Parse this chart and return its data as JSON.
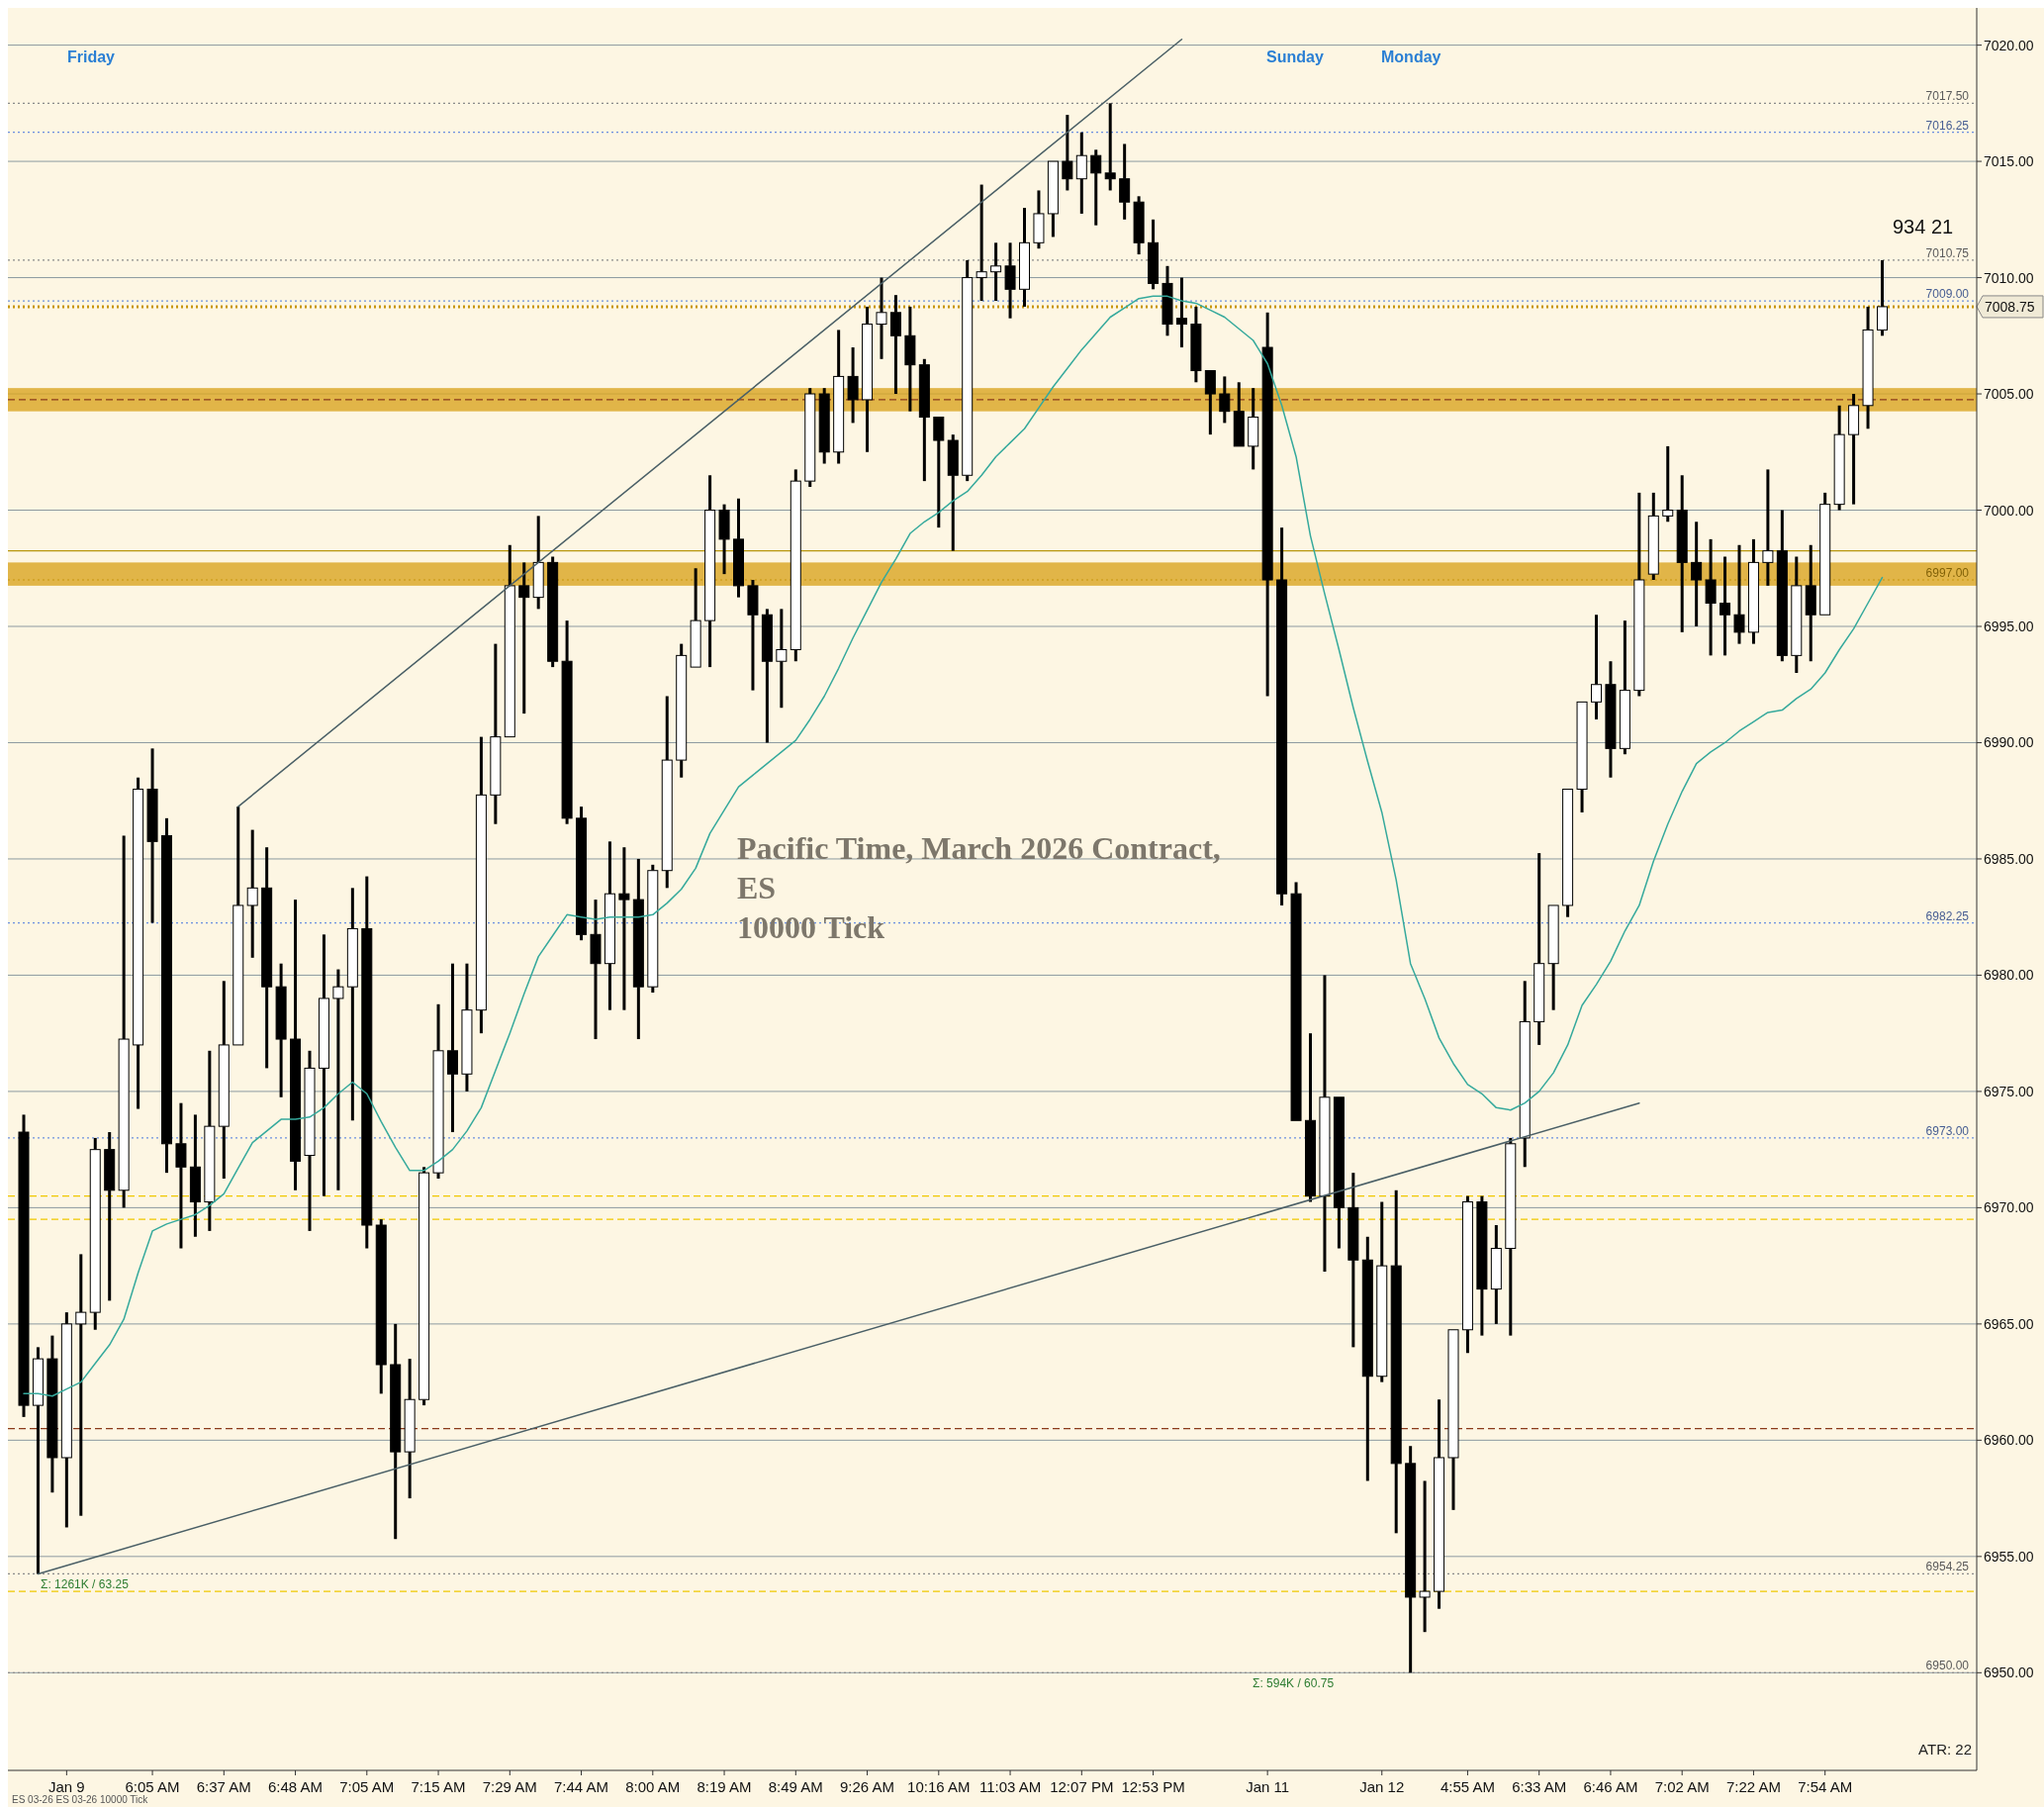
{
  "chart_data": {
    "type": "candlestick",
    "title": "Pacific Time, March 2026 Contract, ES",
    "subtitle": "10000 Tick",
    "categories": [
      null,
      null,
      null,
      "Jan 9",
      null,
      null,
      null,
      null,
      null,
      "6:05 AM",
      null,
      null,
      null,
      null,
      "6:37 AM",
      null,
      null,
      null,
      null,
      "6:48 AM",
      null,
      null,
      null,
      null,
      "7:05 AM",
      null,
      null,
      null,
      null,
      "7:15 AM",
      null,
      null,
      null,
      null,
      "7:29 AM",
      null,
      null,
      null,
      null,
      "7:44 AM",
      null,
      null,
      null,
      null,
      "8:00 AM",
      null,
      null,
      null,
      null,
      "8:19 AM",
      null,
      null,
      null,
      null,
      "8:49 AM",
      null,
      null,
      null,
      null,
      "9:26 AM",
      null,
      null,
      null,
      null,
      "10:16 AM",
      null,
      null,
      null,
      null,
      "11:03 AM",
      null,
      null,
      null,
      null,
      "12:07 PM",
      null,
      null,
      null,
      null,
      "12:53 PM",
      null,
      null,
      null,
      null,
      null,
      null,
      null,
      "Jan 11",
      null,
      null,
      null,
      null,
      null,
      null,
      null,
      "Jan 12",
      null,
      null,
      null,
      null,
      null,
      "4:55 AM",
      null,
      null,
      null,
      null,
      "6:33 AM",
      null,
      null,
      null,
      null,
      "6:46 AM",
      null,
      null,
      null,
      null,
      "7:02 AM",
      null,
      null,
      null,
      null,
      "7:22 AM",
      null,
      null,
      null,
      null,
      "7:54 AM",
      null,
      null,
      null,
      null
    ],
    "ohlc": [
      [
        6973.25,
        6974,
        6961,
        6961.5
      ],
      [
        6961.5,
        6964,
        6954.25,
        6963.5
      ],
      [
        6963.5,
        6964.5,
        6957.75,
        6959.25
      ],
      [
        6959.25,
        6965.5,
        6956.25,
        6965
      ],
      [
        6965,
        6968,
        6956.75,
        6965.5
      ],
      [
        6965.5,
        6973,
        6964.75,
        6972.5
      ],
      [
        6972.5,
        6973.25,
        6966,
        6970.75
      ],
      [
        6970.75,
        6986,
        6970,
        6977.25
      ],
      [
        6977,
        6988.5,
        6974.25,
        6988
      ],
      [
        6988,
        6989.75,
        6982.25,
        6985.75
      ],
      [
        6986,
        6986.75,
        6971.5,
        6972.75
      ],
      [
        6972.75,
        6974.5,
        6968.25,
        6971.75
      ],
      [
        6971.75,
        6974,
        6968.75,
        6970.25
      ],
      [
        6970.25,
        6976.75,
        6969,
        6973.5
      ],
      [
        6973.5,
        6979.75,
        6971.25,
        6977
      ],
      [
        6977,
        6987.25,
        6977,
        6983
      ],
      [
        6983,
        6986.25,
        6980.75,
        6983.75
      ],
      [
        6983.75,
        6985.5,
        6976,
        6979.5
      ],
      [
        6979.5,
        6980.5,
        6974.75,
        6977.25
      ],
      [
        6977.25,
        6983.25,
        6970.75,
        6972
      ],
      [
        6972.25,
        6976.75,
        6969,
        6976
      ],
      [
        6976,
        6981.75,
        6970.5,
        6979
      ],
      [
        6979,
        6980.25,
        6970.75,
        6979.5
      ],
      [
        6979.5,
        6983.75,
        6973.75,
        6982
      ],
      [
        6982,
        6984.25,
        6968.25,
        6969.25
      ],
      [
        6969.25,
        6969.5,
        6962,
        6963.25
      ],
      [
        6963.25,
        6965,
        6955.75,
        6959.5
      ],
      [
        6959.5,
        6963.5,
        6957.5,
        6961.75
      ],
      [
        6961.75,
        6971.75,
        6961.5,
        6971.5
      ],
      [
        6971.5,
        6978.75,
        6971.25,
        6976.75
      ],
      [
        6976.75,
        6980.5,
        6973.25,
        6975.75
      ],
      [
        6975.75,
        6980.5,
        6975,
        6978.5
      ],
      [
        6978.5,
        6990.25,
        6977.5,
        6987.75
      ],
      [
        6987.75,
        6994.25,
        6986.5,
        6990.25
      ],
      [
        6990.25,
        6998.5,
        6990.25,
        6996.75
      ],
      [
        6996.75,
        6997.75,
        6991.25,
        6996.25
      ],
      [
        6996.25,
        6999.75,
        6995.75,
        6997.75
      ],
      [
        6997.75,
        6998,
        6993.25,
        6993.5
      ],
      [
        6993.5,
        6995.25,
        6986.5,
        6986.75
      ],
      [
        6986.75,
        6987.25,
        6981.5,
        6981.75
      ],
      [
        6981.75,
        6983.25,
        6977.25,
        6980.5
      ],
      [
        6980.5,
        6985.75,
        6978.5,
        6983.5
      ],
      [
        6983.5,
        6985.5,
        6978.5,
        6983.25
      ],
      [
        6983.25,
        6985,
        6977.25,
        6979.5
      ],
      [
        6979.5,
        6984.75,
        6979.25,
        6984.5
      ],
      [
        6984.5,
        6992,
        6983.75,
        6989.25
      ],
      [
        6989.25,
        6994.25,
        6988.5,
        6993.75
      ],
      [
        6993.25,
        6997.5,
        6993.25,
        6995.25
      ],
      [
        6995.25,
        7001.5,
        6993.25,
        7000
      ],
      [
        7000,
        7000.25,
        6997.25,
        6998.75
      ],
      [
        6998.75,
        7000.5,
        6996.25,
        6996.75
      ],
      [
        6996.75,
        6997,
        6992.25,
        6995.5
      ],
      [
        6995.5,
        6995.75,
        6990,
        6993.5
      ],
      [
        6993.5,
        6995.75,
        6991.5,
        6994
      ],
      [
        6994,
        7001.75,
        6993.5,
        7001.25
      ],
      [
        7001.25,
        7005.25,
        7001,
        7005
      ],
      [
        7005,
        7005.25,
        7002,
        7002.5
      ],
      [
        7002.5,
        7007.75,
        7002,
        7005.75
      ],
      [
        7005.75,
        7007,
        7003.75,
        7004.75
      ],
      [
        7004.75,
        7008.75,
        7002.5,
        7008
      ],
      [
        7008,
        7010,
        7006.5,
        7008.5
      ],
      [
        7008.5,
        7009.25,
        7005,
        7007.5
      ],
      [
        7007.5,
        7008.75,
        7004.25,
        7006.25
      ],
      [
        7006.25,
        7006.5,
        7001.25,
        7004
      ],
      [
        7004,
        7004,
        6999.25,
        7003
      ],
      [
        7003,
        7003.25,
        6998.25,
        7001.5
      ],
      [
        7001.5,
        7010.75,
        7001.25,
        7010
      ],
      [
        7010,
        7014,
        7009,
        7010.25
      ],
      [
        7010.25,
        7011.5,
        7009,
        7010.5
      ],
      [
        7010.5,
        7011.5,
        7008.25,
        7009.5
      ],
      [
        7009.5,
        7013,
        7008.75,
        7011.5
      ],
      [
        7011.5,
        7013.75,
        7011.25,
        7012.75
      ],
      [
        7012.75,
        7015,
        7011.75,
        7015
      ],
      [
        7015,
        7017,
        7013.75,
        7014.25
      ],
      [
        7014.25,
        7016.25,
        7012.75,
        7015.25
      ],
      [
        7015.25,
        7015.5,
        7012.25,
        7014.5
      ],
      [
        7014.5,
        7017.5,
        7013.75,
        7014.25
      ],
      [
        7014.25,
        7015.75,
        7012.5,
        7013.25
      ],
      [
        7013.25,
        7013.5,
        7011,
        7011.5
      ],
      [
        7011.5,
        7012.5,
        7009.5,
        7009.75
      ],
      [
        7009.75,
        7010.5,
        7007.5,
        7008
      ],
      [
        7008.25,
        7010,
        7007,
        7008
      ],
      [
        7008,
        7008.75,
        7005.5,
        7006
      ],
      [
        7006,
        7006,
        7003.25,
        7005
      ],
      [
        7005,
        7005.75,
        7003.75,
        7004.25
      ],
      [
        7004.25,
        7005.5,
        7002.75,
        7002.75
      ],
      [
        7002.75,
        7005.25,
        7001.75,
        7004
      ],
      [
        7007,
        7008.5,
        6992,
        6997
      ],
      [
        6997,
        6999.25,
        6983,
        6983.5
      ],
      [
        6983.5,
        6984,
        6973.75,
        6973.75
      ],
      [
        6973.75,
        6977.5,
        6970.25,
        6970.5
      ],
      [
        6970.5,
        6980,
        6967.25,
        6974.75
      ],
      [
        6974.75,
        6974.75,
        6968.25,
        6970
      ],
      [
        6970,
        6971.5,
        6964,
        6967.75
      ],
      [
        6967.75,
        6968.75,
        6958.25,
        6962.75
      ],
      [
        6962.75,
        6970.25,
        6962.5,
        6967.5
      ],
      [
        6967.5,
        6970.75,
        6956,
        6959
      ],
      [
        6959,
        6959.75,
        6950,
        6953.25
      ],
      [
        6953.25,
        6958.25,
        6951.75,
        6953.5
      ],
      [
        6953.5,
        6961.75,
        6952.75,
        6959.25
      ],
      [
        6959.25,
        6964.75,
        6957,
        6964.75
      ],
      [
        6964.75,
        6970.5,
        6963.75,
        6970.25
      ],
      [
        6970.25,
        6970.5,
        6964.5,
        6966.5
      ],
      [
        6966.5,
        6969.25,
        6965,
        6968.25
      ],
      [
        6968.25,
        6973,
        6964.5,
        6972.75
      ],
      [
        6973,
        6979.75,
        6971.75,
        6978
      ],
      [
        6978,
        6985.25,
        6977,
        6980.5
      ],
      [
        6980.5,
        6983,
        6978.5,
        6983
      ],
      [
        6983,
        6988,
        6982.5,
        6988
      ],
      [
        6988,
        6991.75,
        6987,
        6991.75
      ],
      [
        6991.75,
        6995.5,
        6991,
        6992.5
      ],
      [
        6992.5,
        6993.5,
        6988.5,
        6989.75
      ],
      [
        6989.75,
        6995.25,
        6989.5,
        6992.25
      ],
      [
        6992.25,
        7000.75,
        6992,
        6997
      ],
      [
        6997.25,
        7000.75,
        6997,
        6999.75
      ],
      [
        6999.75,
        7002.75,
        6999.5,
        7000
      ],
      [
        7000,
        7001.5,
        6994.75,
        6997.75
      ],
      [
        6997.75,
        6999.5,
        6995,
        6997
      ],
      [
        6997,
        6998.75,
        6993.75,
        6996
      ],
      [
        6996,
        6998,
        6993.75,
        6995.5
      ],
      [
        6995.5,
        6998.5,
        6994.25,
        6994.75
      ],
      [
        6994.75,
        6998.75,
        6994.25,
        6997.75
      ],
      [
        6997.75,
        7001.75,
        6996.75,
        6998.25
      ],
      [
        6998.25,
        7000,
        6993.5,
        6993.75
      ],
      [
        6993.75,
        6998,
        6993,
        6996.75
      ],
      [
        6996.75,
        6998.5,
        6993.5,
        6995.5
      ],
      [
        6995.5,
        7000.75,
        6995.5,
        7000.25
      ],
      [
        7000.25,
        7004.5,
        7000,
        7003.25
      ],
      [
        7003.25,
        7005,
        7000.25,
        7004.5
      ],
      [
        7004.5,
        7008.75,
        7003.5,
        7007.75
      ],
      [
        7007.75,
        7010.75,
        7007.5,
        7008.75
      ]
    ],
    "series": [
      {
        "type": "line",
        "color": "#35a99c",
        "values": [
          6962,
          6962,
          6961.9,
          6962.2,
          6962.5,
          6963.3,
          6964.1,
          6965.2,
          6967.2,
          6969,
          6969.3,
          6969.5,
          6969.7,
          6970.1,
          6970.6,
          6971.7,
          6972.8,
          6973.3,
          6973.8,
          6973.8,
          6973.9,
          6974.3,
          6974.9,
          6975.4,
          6974.9,
          6973.7,
          6972.6,
          6971.6,
          6971.6,
          6972,
          6972.5,
          6973.3,
          6974.3,
          6975.9,
          6977.5,
          6979.2,
          6980.8,
          6981.7,
          6982.6,
          6982.5,
          6982.4,
          6982.5,
          6982.5,
          6982.5,
          6982.6,
          6983.1,
          6983.7,
          6984.6,
          6986.1,
          6987.1,
          6988.1,
          6988.6,
          6989.1,
          6989.6,
          6990.1,
          6991,
          6992,
          6993.2,
          6994.5,
          6995.7,
          6996.9,
          6997.9,
          6999,
          6999.5,
          6999.9,
          7000.4,
          7000.8,
          7001.5,
          7002.3,
          7002.9,
          7003.5,
          7004.4,
          7005.3,
          7006.1,
          7006.9,
          7007.6,
          7008.3,
          7008.7,
          7009.1,
          7009.2,
          7009.2,
          7009,
          7008.9,
          7008.6,
          7008.3,
          7007.8,
          7007.3,
          7006.3,
          7004.5,
          7002.3,
          6998.9,
          6996.4,
          6994,
          6991.5,
          6989.2,
          6987,
          6984.1,
          6980.5,
          6979,
          6977.3,
          6976.2,
          6975.3,
          6974.9,
          6974.3,
          6974.2,
          6974.5,
          6975,
          6975.8,
          6977,
          6978.7,
          6979.6,
          6980.6,
          6981.9,
          6983,
          6984.9,
          6986.5,
          6987.9,
          6989.1,
          6989.6,
          6990,
          6990.5,
          6990.9,
          6991.3,
          6991.4,
          6991.9,
          6992.3,
          6993,
          6994,
          6994.9,
          6996,
          6997.1
        ]
      },
      {
        "type": "line",
        "color": "#4a5f66",
        "values": [
          null,
          null,
          null,
          null,
          null,
          null,
          null,
          null,
          null,
          null,
          null,
          null,
          null,
          null,
          null,
          6987.25,
          null,
          null,
          null,
          null,
          null,
          null,
          null,
          null,
          null,
          null,
          null,
          null,
          null,
          null,
          null,
          null,
          null,
          null,
          null,
          null,
          null,
          null,
          null,
          null,
          null,
          null,
          null,
          null,
          null,
          null,
          null,
          null,
          null,
          null,
          null,
          null,
          null,
          null,
          null,
          null,
          null,
          null,
          null,
          null,
          null,
          null,
          null,
          null,
          null,
          null,
          null,
          null,
          null,
          null,
          null,
          null,
          null,
          null,
          null,
          null,
          null,
          null,
          null,
          null,
          null,
          7020.25,
          null,
          null,
          null,
          null,
          null,
          null,
          null,
          null,
          null,
          null,
          null,
          null,
          null,
          null,
          null,
          null,
          null,
          null,
          null,
          null,
          null,
          null,
          null,
          null,
          null,
          null,
          null,
          null,
          null,
          null,
          null,
          null,
          null,
          null,
          null,
          null,
          null,
          null,
          null,
          null,
          null,
          null,
          null,
          null,
          null,
          null,
          null,
          null,
          null
        ]
      },
      {
        "type": "line",
        "color": "#4a5f66",
        "values": [
          null,
          6954.25,
          null,
          null,
          null,
          null,
          null,
          null,
          null,
          null,
          null,
          null,
          null,
          null,
          null,
          null,
          null,
          null,
          null,
          null,
          null,
          null,
          null,
          null,
          null,
          null,
          null,
          null,
          null,
          null,
          null,
          null,
          null,
          null,
          null,
          null,
          null,
          null,
          null,
          null,
          null,
          null,
          null,
          null,
          null,
          null,
          null,
          null,
          null,
          null,
          null,
          null,
          null,
          null,
          null,
          null,
          null,
          null,
          null,
          null,
          null,
          null,
          null,
          null,
          null,
          null,
          null,
          null,
          null,
          null,
          null,
          null,
          null,
          null,
          null,
          null,
          null,
          null,
          null,
          null,
          null,
          null,
          null,
          null,
          null,
          null,
          null,
          null,
          null,
          null,
          null,
          null,
          null,
          null,
          null,
          null,
          null,
          null,
          null,
          null,
          null,
          null,
          null,
          null,
          null,
          null,
          null,
          null,
          null,
          null,
          null,
          null,
          null,
          6974.5,
          null,
          null,
          null,
          null,
          null,
          null,
          null,
          null,
          null,
          null,
          null,
          null,
          null,
          null,
          null,
          null,
          null
        ]
      }
    ],
    "ylim": [
      6945.8,
      7021.6
    ],
    "yticks": [
      {
        "value": 6950,
        "label": "6950.00"
      },
      {
        "value": 6955,
        "label": "6955.00"
      },
      {
        "value": 6960,
        "label": "6960.00"
      },
      {
        "value": 6965,
        "label": "6965.00"
      },
      {
        "value": 6970,
        "label": "6970.00"
      },
      {
        "value": 6975,
        "label": "6975.00"
      },
      {
        "value": 6980,
        "label": "6980.00"
      },
      {
        "value": 6985,
        "label": "6985.00"
      },
      {
        "value": 6990,
        "label": "6990.00"
      },
      {
        "value": 6995,
        "label": "6995.00"
      },
      {
        "value": 7000,
        "label": "7000.00"
      },
      {
        "value": 7005,
        "label": "7005.00"
      },
      {
        "value": 7010,
        "label": "7010.00"
      },
      {
        "value": 7015,
        "label": "7015.00"
      },
      {
        "value": 7020,
        "label": "7020.00"
      }
    ],
    "grid": true,
    "bands": [
      {
        "axis": "y",
        "from": 7004.25,
        "to": 7005.25,
        "color": "#daa520"
      },
      {
        "axis": "y",
        "from": 6996.75,
        "to": 6997.75,
        "color": "#daa520"
      }
    ],
    "ref_lines": [
      {
        "axis": "y",
        "value": 7008.75,
        "label": "7008.75",
        "color": "#c8960c",
        "line_style": "dotted"
      },
      {
        "axis": "y",
        "value": 6998.25,
        "color": "#b8960c",
        "line_style": "solid"
      },
      {
        "axis": "y",
        "value": 7017.5,
        "label": "7017.50",
        "color": "#8a8a8a",
        "line_style": "dotted"
      },
      {
        "axis": "y",
        "value": 7016.25,
        "label": "7016.25",
        "color": "#6b8fe0",
        "line_style": "dotted"
      },
      {
        "axis": "y",
        "value": 7010.75,
        "label": "7010.75",
        "color": "#8a8a8a",
        "line_style": "dotted"
      },
      {
        "axis": "y",
        "value": 7009,
        "label": "7009.00",
        "color": "#6b8fe0",
        "line_style": "dotted"
      },
      {
        "axis": "y",
        "value": 6997,
        "label": "6997.00",
        "color": "#c8960c",
        "line_style": "dotted"
      },
      {
        "axis": "y",
        "value": 6982.25,
        "label": "6982.25",
        "color": "#6b8fe0",
        "line_style": "dotted"
      },
      {
        "axis": "y",
        "value": 6973,
        "label": "6973.00",
        "color": "#6b8fe0",
        "line_style": "dotted"
      },
      {
        "axis": "y",
        "value": 6954.25,
        "label": "6954.25",
        "color": "#8a8a8a",
        "line_style": "dotted"
      },
      {
        "axis": "y",
        "value": 6950,
        "label": "6950.00",
        "color": "#8a8a8a",
        "line_style": "dotted"
      },
      {
        "axis": "y",
        "value": 7004.75,
        "color": "#8b3a1a",
        "line_style": "dashed"
      },
      {
        "axis": "y",
        "value": 6960.5,
        "color": "#8b3a1a",
        "line_style": "dashed"
      },
      {
        "axis": "y",
        "value": 6970.5,
        "color": "#f0c800",
        "line_style": "dashed"
      },
      {
        "axis": "y",
        "value": 6969.5,
        "color": "#f0c800",
        "line_style": "dashed"
      },
      {
        "axis": "y",
        "value": 6953.5,
        "color": "#f0c800",
        "line_style": "dashed"
      }
    ],
    "annotations": [
      "Friday",
      "Sunday",
      "Monday",
      "Σ: 1261K / 63.25",
      "Σ: 594K / 60.75",
      "934 21",
      "ATR: 22",
      "ES 03-26 ES 03-26 10000 Tick"
    ]
  }
}
